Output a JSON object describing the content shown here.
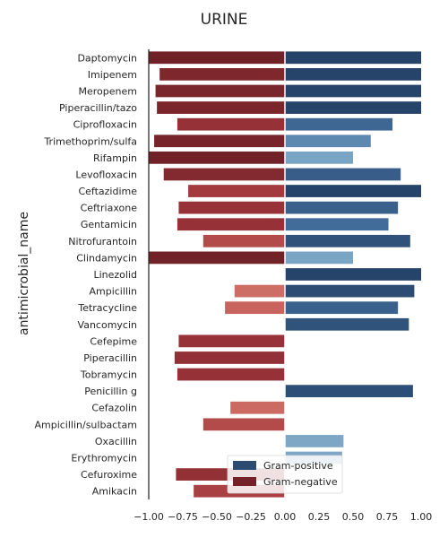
{
  "chart_data": {
    "type": "bar",
    "orientation": "horizontal",
    "title": "URINE",
    "xlabel": "",
    "ylabel": "antimicrobial_name",
    "xlim": [
      -1.0,
      1.0
    ],
    "xticks": [
      "−1.00",
      "−0.75",
      "−0.50",
      "−0.25",
      "0.00",
      "0.25",
      "0.50",
      "0.75",
      "1.00"
    ],
    "grid": false,
    "legend_position": "lower-center",
    "categories": [
      "Daptomycin",
      "Imipenem",
      "Meropenem",
      "Piperacillin/tazo",
      "Ciprofloxacin",
      "Trimethoprim/sulfa",
      "Rifampin",
      "Levofloxacin",
      "Ceftazidime",
      "Ceftriaxone",
      "Gentamicin",
      "Nitrofurantoin",
      "Clindamycin",
      "Linezolid",
      "Ampicillin",
      "Tetracycline",
      "Vancomycin",
      "Cefepime",
      "Piperacillin",
      "Tobramycin",
      "Penicillin g",
      "Cefazolin",
      "Ampicillin/sulbactam",
      "Oxacillin",
      "Erythromycin",
      "Cefuroxime",
      "Amikacin"
    ],
    "series": [
      {
        "name": "Gram-positive",
        "color": "#2b4b70",
        "values": [
          1.0,
          1.0,
          1.0,
          1.0,
          0.79,
          0.63,
          0.5,
          0.85,
          1.0,
          0.83,
          0.76,
          0.92,
          0.5,
          1.0,
          0.95,
          0.83,
          0.91,
          null,
          null,
          null,
          0.94,
          null,
          null,
          0.43,
          0.42,
          null,
          null
        ]
      },
      {
        "name": "Gram-negative",
        "color": "#722228",
        "values": [
          -1.0,
          -0.92,
          -0.95,
          -0.94,
          -0.79,
          -0.96,
          -1.0,
          -0.89,
          -0.71,
          -0.78,
          -0.79,
          -0.6,
          -1.0,
          null,
          -0.37,
          -0.44,
          null,
          -0.78,
          -0.81,
          -0.79,
          null,
          -0.4,
          -0.6,
          null,
          null,
          -0.8,
          -0.67
        ]
      }
    ]
  }
}
